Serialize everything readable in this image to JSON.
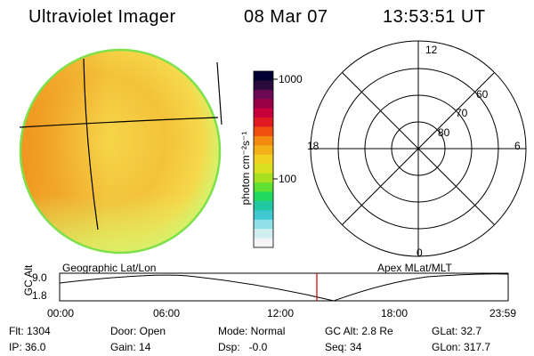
{
  "header": {
    "title": "Ultraviolet Imager",
    "date": "08 Mar 07",
    "time": "13:53:51 UT"
  },
  "colorbar": {
    "unit_label": "photon cm⁻²s⁻¹",
    "tick_labels": [
      "1000",
      "100"
    ],
    "colors_top_to_bottom": [
      "#000033",
      "#2a0a3a",
      "#6a0a55",
      "#9a0044",
      "#c8003a",
      "#e01a20",
      "#ef5010",
      "#f38a10",
      "#f4b018",
      "#f0d020",
      "#d8e020",
      "#a8e020",
      "#60e030",
      "#20d860",
      "#20c8a0",
      "#40c8d0",
      "#90e0e8",
      "#d0eef0",
      "#f4f4f4"
    ]
  },
  "polar_plot": {
    "lat_labels": [
      "60",
      "70",
      "80"
    ],
    "mlt_labels": {
      "top": "12",
      "left": "18",
      "right": "6",
      "bottom": "0"
    }
  },
  "timeline": {
    "title_left": "Geographic Lat/Lon",
    "title_right": "Apex MLat/MLT",
    "ylabel": "GC Alt",
    "yticks": [
      "9.0",
      "1.8"
    ],
    "xticks": [
      "00:00",
      "06:00",
      "12:00",
      "18:00",
      "23:59"
    ],
    "current_time_marker": "13:53:51",
    "marker_color": "#cc0000"
  },
  "info": {
    "flt": "Flt: 1304",
    "door": "Door: Open",
    "mode": "Mode: Normal",
    "gc_alt": "GC Alt: 2.8 Re",
    "glat": "GLat: 32.7",
    "ip": "IP: 36.0",
    "gain": "Gain: 14",
    "dsp": "Dsp:   -0.0",
    "seq": "Seq: 34",
    "glon": "GLon: 317.7"
  },
  "image_colors": {
    "disk_base": "#f3c23a",
    "disk_edge": "#7ee04a",
    "hot": "#ef8a18",
    "warm": "#f6d84a",
    "cool": "#d8f06a"
  }
}
